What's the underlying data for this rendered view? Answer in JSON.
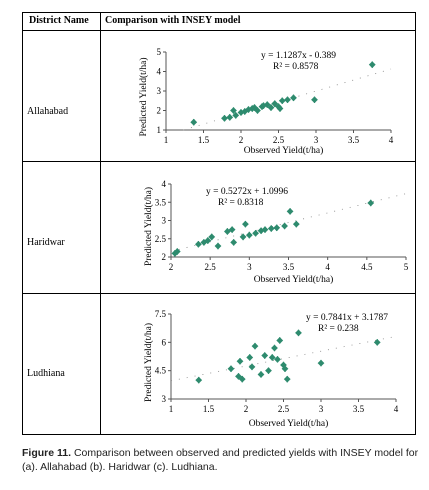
{
  "table": {
    "col1_header": "District Name",
    "col2_header": "Comparison with INSEY model",
    "rows": [
      {
        "district": "Allahabad"
      },
      {
        "district": "Haridwar"
      },
      {
        "district": "Ludhiana"
      }
    ]
  },
  "caption": {
    "label": "Figure 11.",
    "text": " Comparison between observed and predicted yields with INSEY model for (a). Allahabad (b). Haridwar (c). Ludhiana."
  },
  "chart_data": [
    {
      "type": "scatter",
      "title": "",
      "xlabel": "Observed Yield(t/ha)",
      "ylabel": "Predicted Yield(t/ha)",
      "xlim": [
        1,
        4
      ],
      "ylim": [
        1,
        5
      ],
      "xticks": [
        "1",
        "1.5",
        "2",
        "2.5",
        "3",
        "3.5",
        "4"
      ],
      "yticks": [
        "1",
        "2",
        "3",
        "4",
        "5"
      ],
      "equation": "y = 1.1287x - 0.389",
      "r2": "R² = 0.8578",
      "trendline": {
        "slope": 1.1287,
        "intercept": -0.389
      },
      "marker_color": "#2e8b6e",
      "x": [
        1.37,
        1.78,
        1.85,
        1.9,
        1.93,
        2.0,
        2.05,
        2.1,
        2.15,
        2.18,
        2.22,
        2.28,
        2.3,
        2.35,
        2.4,
        2.45,
        2.5,
        2.52,
        2.55,
        2.62,
        2.7,
        2.98,
        3.75
      ],
      "y": [
        1.4,
        1.6,
        1.65,
        2.0,
        1.75,
        1.9,
        1.95,
        2.05,
        2.1,
        2.15,
        2.0,
        2.2,
        2.25,
        2.3,
        2.15,
        2.35,
        2.2,
        2.1,
        2.5,
        2.55,
        2.65,
        2.55,
        4.35
      ]
    },
    {
      "type": "scatter",
      "title": "",
      "xlabel": "Observed Yield(t/ha)",
      "ylabel": "Predicted Yield(t/ha)",
      "xlim": [
        2,
        5
      ],
      "ylim": [
        2,
        4
      ],
      "xticks": [
        "2",
        "2.5",
        "3",
        "3.5",
        "4",
        "4.5",
        "5"
      ],
      "yticks": [
        "2",
        "2.5",
        "3",
        "3.5",
        "4"
      ],
      "equation": "y = 0.5272x + 1.0996",
      "r2": "R² = 0.8318",
      "trendline": {
        "slope": 0.5272,
        "intercept": 1.0996
      },
      "marker_color": "#2e8b6e",
      "x": [
        2.05,
        2.08,
        2.35,
        2.42,
        2.47,
        2.52,
        2.6,
        2.72,
        2.78,
        2.8,
        2.92,
        2.95,
        3.0,
        3.08,
        3.15,
        3.2,
        3.28,
        3.35,
        3.45,
        3.52,
        3.6,
        4.55
      ],
      "y": [
        2.1,
        2.15,
        2.35,
        2.4,
        2.45,
        2.55,
        2.3,
        2.7,
        2.75,
        2.4,
        2.55,
        2.9,
        2.6,
        2.65,
        2.72,
        2.75,
        2.78,
        2.8,
        2.85,
        3.25,
        2.9,
        3.48
      ]
    },
    {
      "type": "scatter",
      "title": "",
      "xlabel": "Observed Yield(t/ha)",
      "ylabel": "Predicted Yield(t/ha)",
      "xlim": [
        1,
        4
      ],
      "ylim": [
        3,
        7.5
      ],
      "xticks": [
        "1",
        "1.5",
        "2",
        "2.5",
        "3",
        "3.5",
        "4"
      ],
      "yticks": [
        "3",
        "4.5",
        "6",
        "7.5"
      ],
      "equation": "y = 0.7841x + 3.1787",
      "r2": "R² = 0.238",
      "trendline": {
        "slope": 0.7841,
        "intercept": 3.1787
      },
      "marker_color": "#2e8b6e",
      "x": [
        1.37,
        1.8,
        1.9,
        1.92,
        1.95,
        2.05,
        2.08,
        2.12,
        2.2,
        2.25,
        2.3,
        2.35,
        2.38,
        2.42,
        2.45,
        2.5,
        2.52,
        2.55,
        2.7,
        3.0,
        3.75
      ],
      "y": [
        4.0,
        4.6,
        4.2,
        5.0,
        4.05,
        5.2,
        4.7,
        5.8,
        4.3,
        5.3,
        4.5,
        5.2,
        5.7,
        5.1,
        6.1,
        4.8,
        4.6,
        4.05,
        6.5,
        4.9,
        6.0
      ]
    }
  ]
}
